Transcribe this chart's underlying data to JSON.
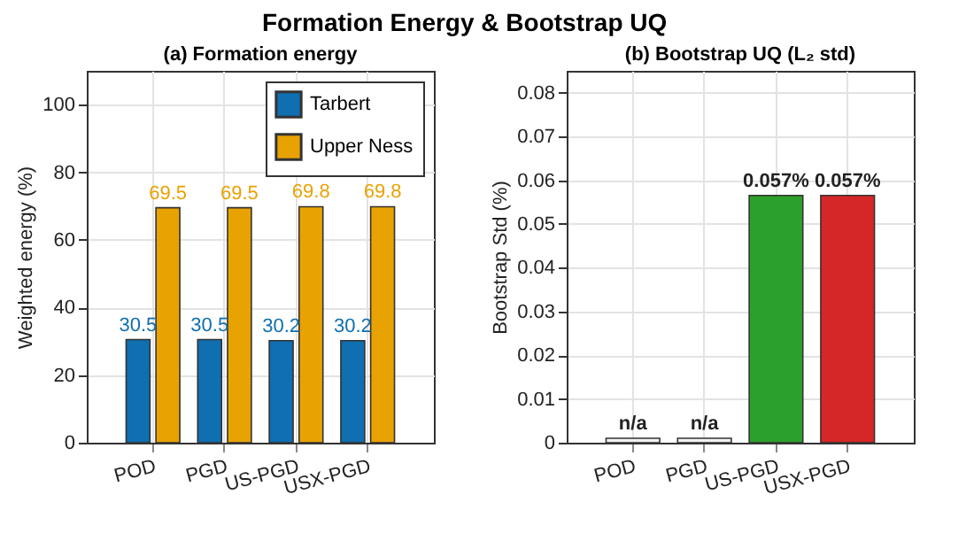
{
  "chart_data": [
    {
      "type": "bar",
      "title": "(a) Formation energy",
      "annotations": [
        "Formation Energy & Bootstrap UQ"
      ],
      "ylabel": "Weighted energy (%)",
      "categories": [
        "POD",
        "PGD",
        "US-PGD",
        "USX-PGD"
      ],
      "series": [
        {
          "name": "Tarbert",
          "color": "#0f6fb0",
          "values": [
            30.5,
            30.5,
            30.2,
            30.2
          ]
        },
        {
          "name": "Upper Ness",
          "color": "#e8a202",
          "values": [
            69.5,
            69.5,
            69.8,
            69.8
          ]
        }
      ],
      "ylim": [
        0,
        110
      ],
      "yticks": [
        0,
        20,
        40,
        60,
        80,
        100
      ],
      "grid": true,
      "legend": "top right",
      "data_labels": true
    },
    {
      "type": "bar",
      "title": "(b) Bootstrap UQ (L₂ std)",
      "ylabel": "Bootstrap Std (%)",
      "categories": [
        "POD",
        "PGD",
        "US-PGD",
        "USX-PGD"
      ],
      "values": [
        0.001,
        0.001,
        0.0565,
        0.0565
      ],
      "colors": [
        "#f2f2f2",
        "#f2f2f2",
        "#2ca02c",
        "#d62728"
      ],
      "value_labels": [
        "n/a",
        "n/a",
        "0.057%",
        "0.057%"
      ],
      "ylim": [
        0,
        0.085
      ],
      "yticks": [
        0,
        0.01,
        0.02,
        0.03,
        0.04,
        0.05,
        0.06,
        0.07,
        0.08
      ],
      "grid": true
    }
  ]
}
